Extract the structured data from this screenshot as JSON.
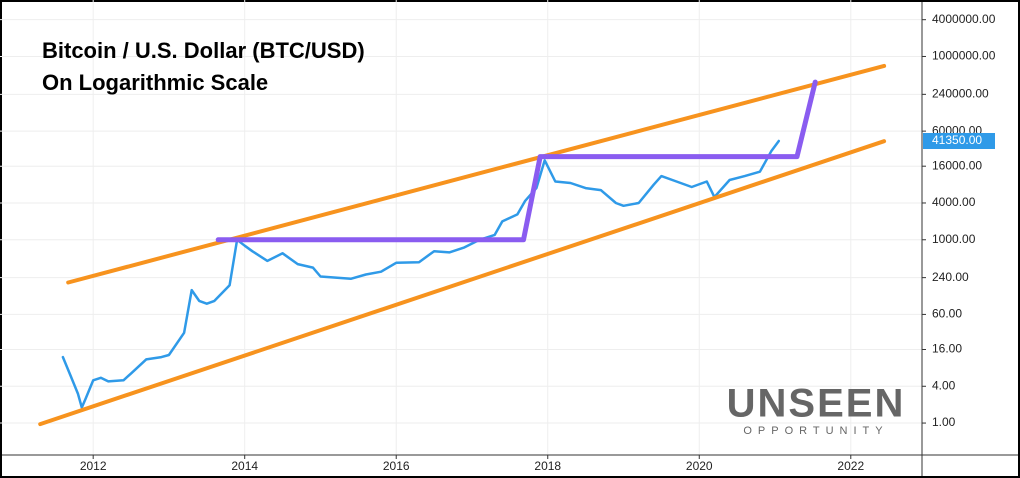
{
  "chart_data": {
    "type": "line",
    "title": [
      "Bitcoin / U.S. Dollar (BTC/USD)",
      "On Logarithmic Scale"
    ],
    "log_y": true,
    "grid": true,
    "xlim": [
      2010.77,
      2022.94
    ],
    "xticks": [
      2012,
      2014,
      2016,
      2018,
      2020,
      2022
    ],
    "ylim": [
      0.3,
      8400000
    ],
    "yticks": [
      {
        "value": 1,
        "label": "1.00"
      },
      {
        "value": 4,
        "label": "4.00"
      },
      {
        "value": 16,
        "label": "16.00"
      },
      {
        "value": 60,
        "label": "60.00"
      },
      {
        "value": 240,
        "label": "240.00"
      },
      {
        "value": 1000,
        "label": "1000.00"
      },
      {
        "value": 4000,
        "label": "4000.00"
      },
      {
        "value": 16000,
        "label": "16000.00"
      },
      {
        "value": 60000,
        "label": "60000.00"
      },
      {
        "value": 240000,
        "label": "240000.00"
      },
      {
        "value": 1000000,
        "label": "1000000.00"
      },
      {
        "value": 4000000,
        "label": "4000000.00"
      }
    ],
    "series": [
      {
        "color": "#2f9ae8",
        "width": 2.5,
        "x": [
          2011.6,
          2011.7,
          2011.8,
          2011.85,
          2011.9,
          2012.0,
          2012.1,
          2012.2,
          2012.4,
          2012.5,
          2012.7,
          2012.9,
          2013.0,
          2013.2,
          2013.3,
          2013.4,
          2013.5,
          2013.6,
          2013.8,
          2013.9,
          2014.0,
          2014.1,
          2014.3,
          2014.5,
          2014.7,
          2014.9,
          2015.0,
          2015.2,
          2015.4,
          2015.6,
          2015.8,
          2016.0,
          2016.3,
          2016.5,
          2016.7,
          2016.9,
          2017.1,
          2017.3,
          2017.4,
          2017.6,
          2017.7,
          2017.85,
          2017.96,
          2018.1,
          2018.3,
          2018.5,
          2018.7,
          2018.9,
          2019.0,
          2019.2,
          2019.4,
          2019.5,
          2019.7,
          2019.9,
          2020.1,
          2020.2,
          2020.4,
          2020.6,
          2020.8,
          2020.95,
          2021.05
        ],
        "values": [
          12,
          6,
          3,
          1.8,
          2.5,
          5,
          5.5,
          4.8,
          5,
          6.5,
          11,
          12,
          13,
          30,
          150,
          100,
          90,
          100,
          180,
          1000,
          800,
          650,
          450,
          600,
          400,
          350,
          250,
          240,
          230,
          270,
          300,
          420,
          430,
          650,
          620,
          750,
          1000,
          1200,
          2000,
          2600,
          4300,
          7000,
          20000,
          9000,
          8500,
          7000,
          6500,
          4000,
          3600,
          4000,
          8000,
          11000,
          9000,
          7300,
          9000,
          5000,
          9500,
          11000,
          13000,
          28000,
          41350
        ]
      },
      {
        "color": "#f7931e",
        "width": 4,
        "x": [
          2011.67,
          2022.44
        ],
        "values": [
          200,
          700000
        ]
      },
      {
        "color": "#f7931e",
        "width": 4,
        "x": [
          2011.3,
          2022.44
        ],
        "values": [
          0.96,
          41000
        ]
      },
      {
        "color": "#8a5cf0",
        "width": 5,
        "x": [
          2013.65,
          2017.68,
          2017.9,
          2021.29,
          2021.53
        ],
        "values": [
          1000,
          1000,
          23000,
          23000,
          380000
        ]
      }
    ],
    "price_label": "41350.00",
    "price_label_color": "#2f9ae8",
    "watermark": [
      "UNSEEN",
      "OPPORTUNITY"
    ]
  }
}
